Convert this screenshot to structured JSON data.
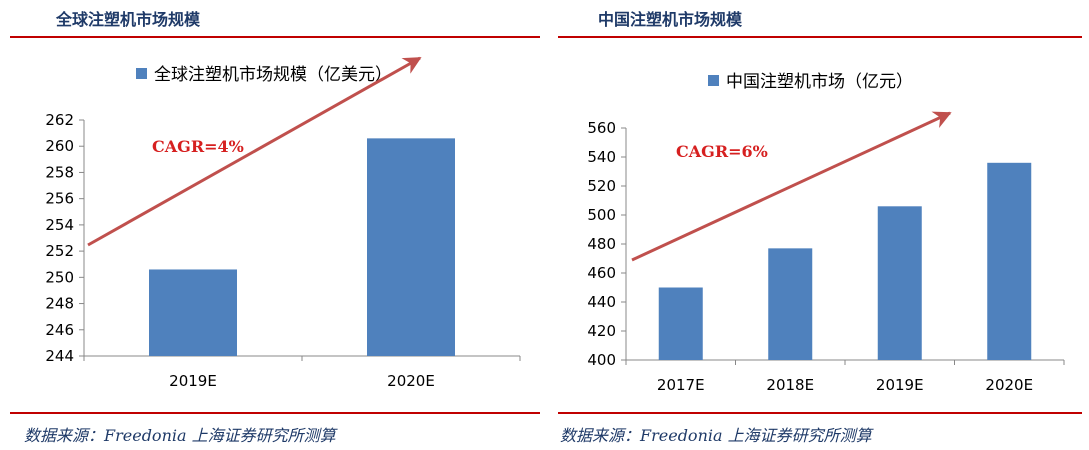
{
  "colors": {
    "bar": "#4f81bd",
    "arrow": "#c0504d",
    "rule": "#c00000",
    "title": "#1f3a68",
    "cagr": "#d62020"
  },
  "chart_data": [
    {
      "type": "bar",
      "panel_title": "全球注塑机市场规模",
      "legend": "全球注塑机市场规模（亿美元）",
      "series": [
        {
          "name": "全球注塑机市场规模（亿美元）",
          "values": [
            250.6,
            260.6
          ]
        }
      ],
      "categories": [
        "2019E",
        "2020E"
      ],
      "ylim": [
        244,
        262
      ],
      "yticks": [
        244,
        246,
        248,
        250,
        252,
        254,
        256,
        258,
        260,
        262
      ],
      "annotation": "CAGR=4%",
      "grid": false,
      "legend_position": "top"
    },
    {
      "type": "bar",
      "panel_title": "中国注塑机市场规模",
      "legend": "中国注塑机市场（亿元）",
      "series": [
        {
          "name": "中国注塑机市场（亿元）",
          "values": [
            450,
            477,
            506,
            536
          ]
        }
      ],
      "categories": [
        "2017E",
        "2018E",
        "2019E",
        "2020E"
      ],
      "ylim": [
        400,
        560
      ],
      "yticks": [
        400,
        420,
        440,
        460,
        480,
        500,
        520,
        540,
        560
      ],
      "annotation": "CAGR=6%",
      "grid": false,
      "legend_position": "top"
    }
  ],
  "sources": [
    "数据来源：Freedonia  上海证券研究所测算",
    "数据来源：Freedonia  上海证券研究所测算"
  ]
}
